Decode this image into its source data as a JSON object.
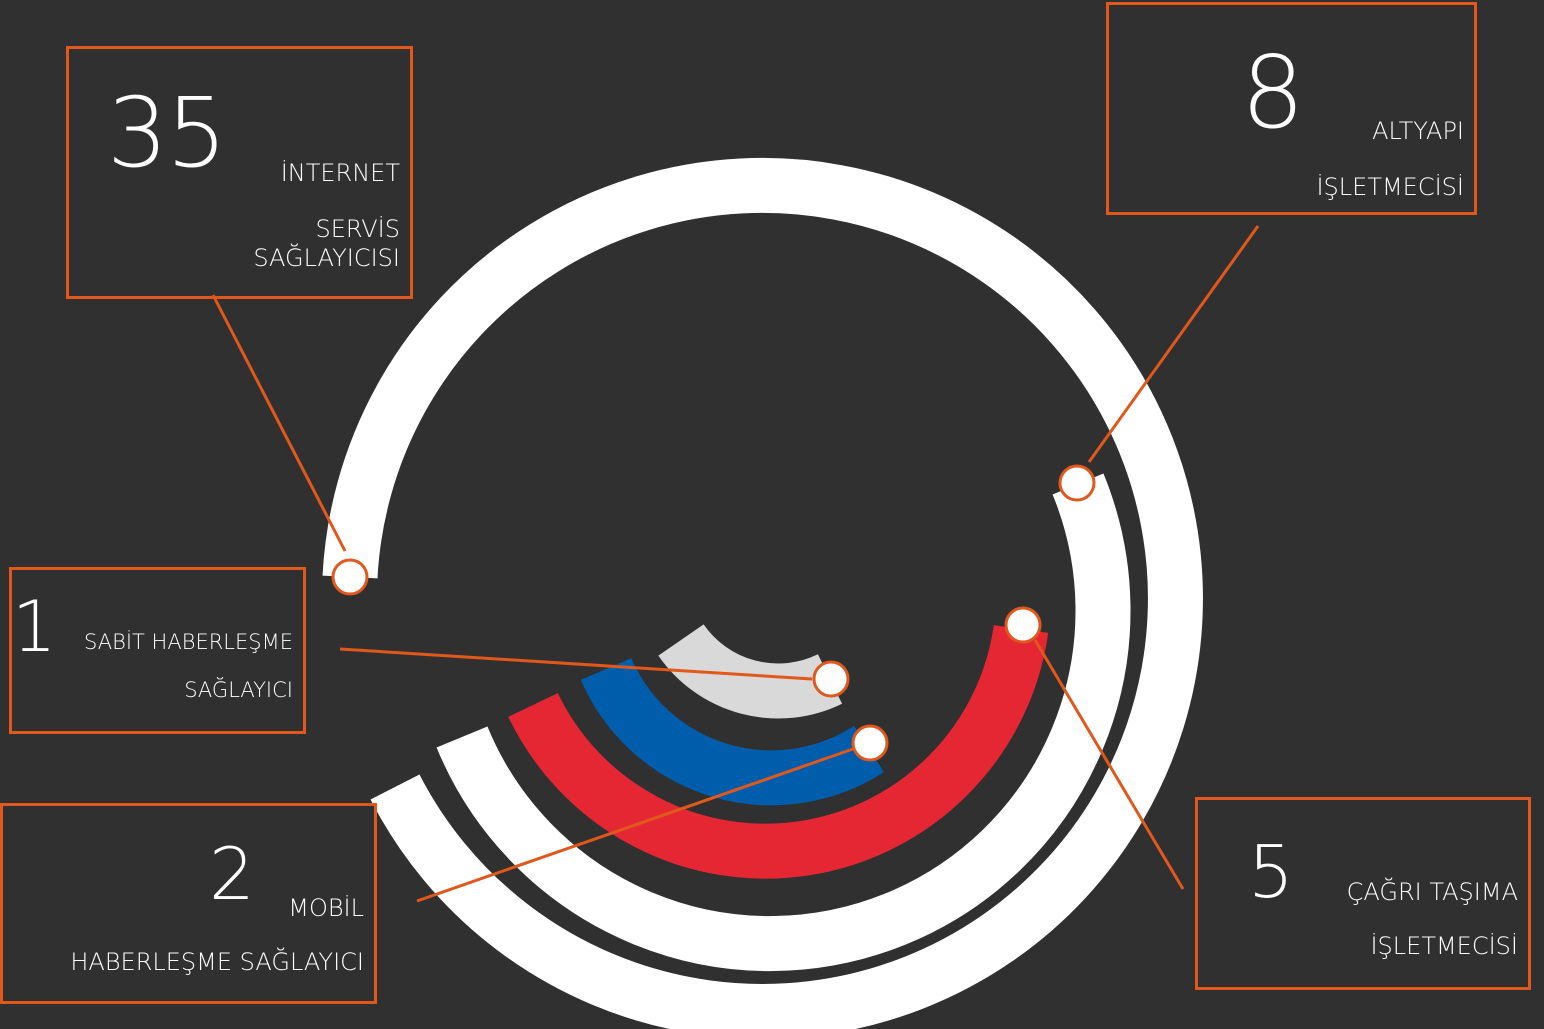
{
  "colors": {
    "background": "#303030",
    "accent": "#e0581c",
    "ring_white": "#ffffff",
    "ring_red": "#e52734",
    "ring_blue": "#005dab",
    "ring_gray": "#d9d9d9"
  },
  "callouts": {
    "isp": {
      "number": "35",
      "line1": "İNTERNET",
      "line2": "SERVİS",
      "line3": "SAĞLAYICISI"
    },
    "infra": {
      "number": "8",
      "line1": "ALTYAPI",
      "line2": "İŞLETMECİSİ"
    },
    "fixed": {
      "number": "1",
      "line1": "SABİT HABERLEŞME",
      "line2": "SAĞLAYICI"
    },
    "mobile": {
      "number": "2",
      "line1": "MOBİL",
      "line2": "HABERLEŞME SAĞLAYICI"
    },
    "call": {
      "number": "5",
      "line1": "ÇAĞRI TAŞIMA",
      "line2": "İŞLETMECİSİ"
    }
  }
}
